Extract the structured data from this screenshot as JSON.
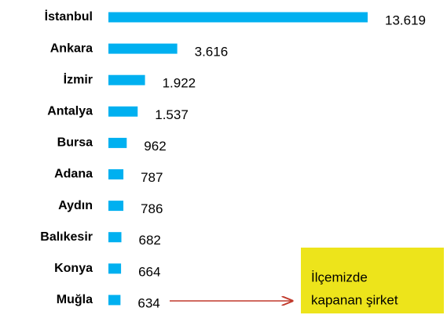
{
  "chart_data": {
    "type": "hbar",
    "categories": [
      "İstanbul",
      "Ankara",
      "İzmir",
      "Antalya",
      "Bursa",
      "Adana",
      "Aydın",
      "Balıkesir",
      "Konya",
      "Muğla"
    ],
    "values": [
      13619,
      3616,
      1922,
      1537,
      962,
      787,
      786,
      682,
      664,
      634
    ],
    "value_labels": [
      "13.619",
      "3.616",
      "1.922",
      "1.537",
      "962",
      "787",
      "786",
      "682",
      "664",
      "634"
    ],
    "color": "#00b0f0",
    "annotation": [
      "İlçemizde",
      "kapanan şirket"
    ]
  }
}
